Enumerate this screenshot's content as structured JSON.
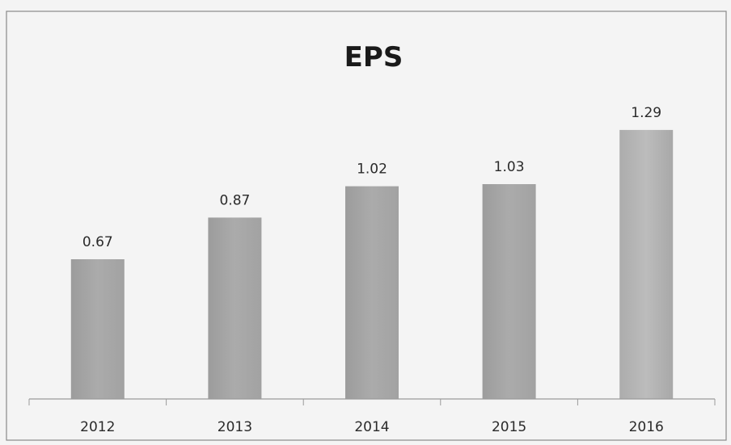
{
  "chart_data": {
    "type": "bar",
    "title": "EPS",
    "categories": [
      "2012",
      "2013",
      "2014",
      "2015",
      "2016"
    ],
    "values": [
      0.67,
      0.87,
      1.02,
      1.03,
      1.29
    ],
    "data_labels": [
      "0.67",
      "0.87",
      "1.02",
      "1.03",
      "1.29"
    ],
    "xlabel": "",
    "ylabel": "",
    "ylim": [
      0,
      1.34
    ],
    "grid": false,
    "legend": "none",
    "bar_color": "#a5a5a5",
    "bar_color_highlight": "#b4b4b4"
  }
}
